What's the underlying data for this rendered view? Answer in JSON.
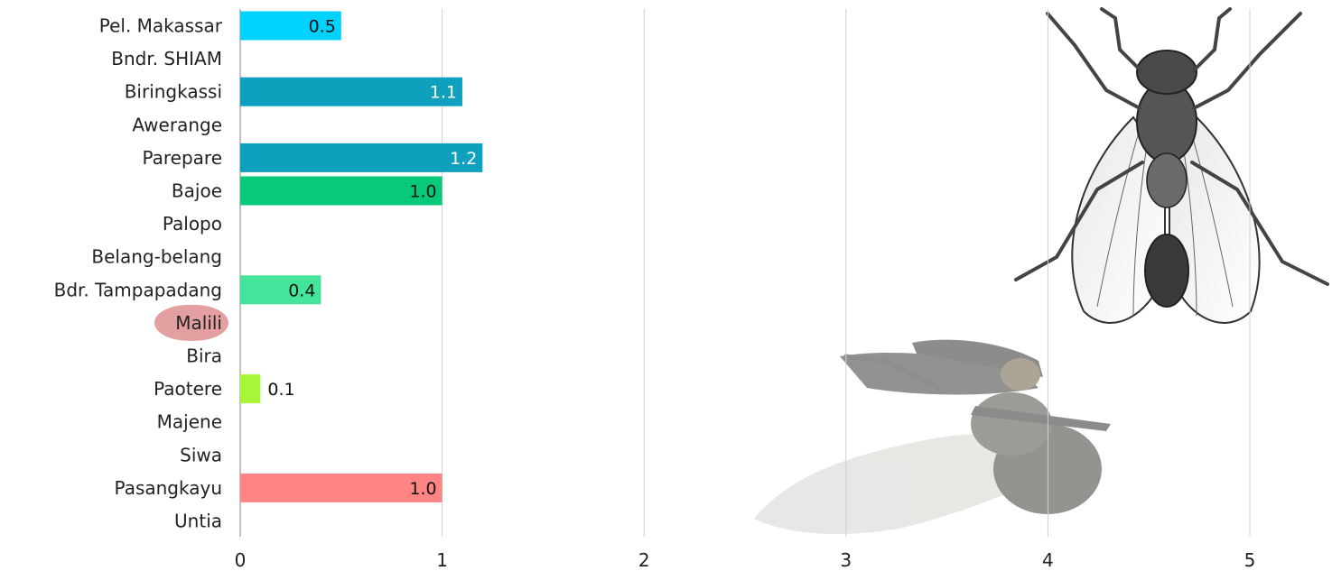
{
  "chart_data": {
    "type": "bar",
    "orientation": "horizontal",
    "categories": [
      "Pel. Makassar",
      "Bndr. SHIAM",
      "Biringkassi",
      "Awerange",
      "Parepare",
      "Bajoe",
      "Palopo",
      "Belang-belang",
      "Bdr. Tampapadang",
      "Malili",
      "Bira",
      "Paotere",
      "Majene",
      "Siwa",
      "Pasangkayu",
      "Untia"
    ],
    "values": [
      0.5,
      null,
      1.1,
      null,
      1.2,
      1.0,
      null,
      null,
      0.4,
      null,
      null,
      0.1,
      null,
      null,
      1.0,
      null
    ],
    "value_labels": [
      "0.5",
      "",
      "1.1",
      "",
      "1.2",
      "1.0",
      "",
      "",
      "0.4",
      "",
      "",
      "0.1",
      "",
      "",
      "1.0",
      ""
    ],
    "bar_colors": [
      "#00d2ff",
      "",
      "#0ea0bd",
      "",
      "#0ea0bd",
      "#08c87a",
      "",
      "",
      "#44e59a",
      "",
      "",
      "#a8f53a",
      "",
      "",
      "#ff8585",
      ""
    ],
    "label_colors": [
      "#111111",
      "",
      "#ffffff",
      "",
      "#ffffff",
      "#111111",
      "",
      "",
      "#111111",
      "",
      "",
      "#111111",
      "",
      "",
      "#111111",
      ""
    ],
    "highlighted_category": "Malili",
    "highlight_color": "#d97878",
    "xlim": [
      0,
      5
    ],
    "x_ticks": [
      "0",
      "1",
      "2",
      "3",
      "4",
      "5"
    ],
    "grid": true,
    "title": "",
    "xlabel": "",
    "ylabel": "",
    "decorations": [
      "housefly-illustration",
      "dead-fly-photo"
    ]
  }
}
